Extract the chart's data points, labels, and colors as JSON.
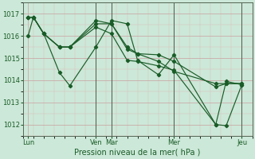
{
  "xlabel": "Pression niveau de la mer( hPa )",
  "bg_color": "#cce8d8",
  "line_color": "#1a5c28",
  "grid_color_v": "#c8a0a0",
  "grid_color_h": "#c8a0a0",
  "ylim": [
    1011.5,
    1017.5
  ],
  "yticks": [
    1012,
    1013,
    1014,
    1015,
    1016,
    1017
  ],
  "xlim": [
    0,
    22
  ],
  "xtick_positions": [
    0.5,
    7.0,
    8.5,
    14.5,
    21.0
  ],
  "xtick_labels": [
    "Lun",
    "Ven",
    "Mar",
    "Mer",
    "Jeu"
  ],
  "vline_positions": [
    7.0,
    8.5,
    14.5,
    21.0
  ],
  "line1_x": [
    0.5,
    1.0,
    2.0,
    3.5,
    4.5,
    7.0,
    8.5,
    10.0,
    11.0,
    13.0,
    14.5,
    18.5,
    19.5,
    21.0
  ],
  "line1_y": [
    1016.0,
    1016.85,
    1016.1,
    1015.5,
    1015.5,
    1016.55,
    1016.55,
    1015.4,
    1015.2,
    1014.85,
    1014.4,
    1013.85,
    1013.85,
    1013.85
  ],
  "line2_x": [
    0.5,
    1.0,
    2.0,
    3.5,
    4.5,
    7.0,
    8.5,
    10.0,
    11.0,
    13.0,
    14.5,
    18.5,
    19.5,
    21.0
  ],
  "line2_y": [
    1016.85,
    1016.85,
    1016.1,
    1014.35,
    1013.75,
    1015.5,
    1016.7,
    1016.55,
    1014.9,
    1014.25,
    1015.15,
    1012.0,
    1011.95,
    1013.8
  ],
  "line3_x": [
    0.5,
    1.0,
    2.0,
    3.5,
    4.5,
    7.0,
    8.5,
    10.0,
    11.0,
    13.0,
    14.5,
    18.5,
    19.5,
    21.0
  ],
  "line3_y": [
    1016.85,
    1016.85,
    1016.1,
    1015.5,
    1015.5,
    1016.7,
    1016.55,
    1015.5,
    1015.2,
    1015.15,
    1014.85,
    1013.7,
    1013.85,
    1013.85
  ],
  "line4_x": [
    0.5,
    1.0,
    2.0,
    3.5,
    4.5,
    7.0,
    8.5,
    10.0,
    11.0,
    13.0,
    14.5,
    18.5,
    19.5,
    21.0
  ],
  "line4_y": [
    1016.85,
    1016.85,
    1016.1,
    1015.5,
    1015.5,
    1016.4,
    1016.1,
    1014.9,
    1014.85,
    1014.65,
    1014.45,
    1012.0,
    1013.95,
    1013.8
  ],
  "ytick_fontsize": 6,
  "xtick_fontsize": 6,
  "xlabel_fontsize": 7
}
